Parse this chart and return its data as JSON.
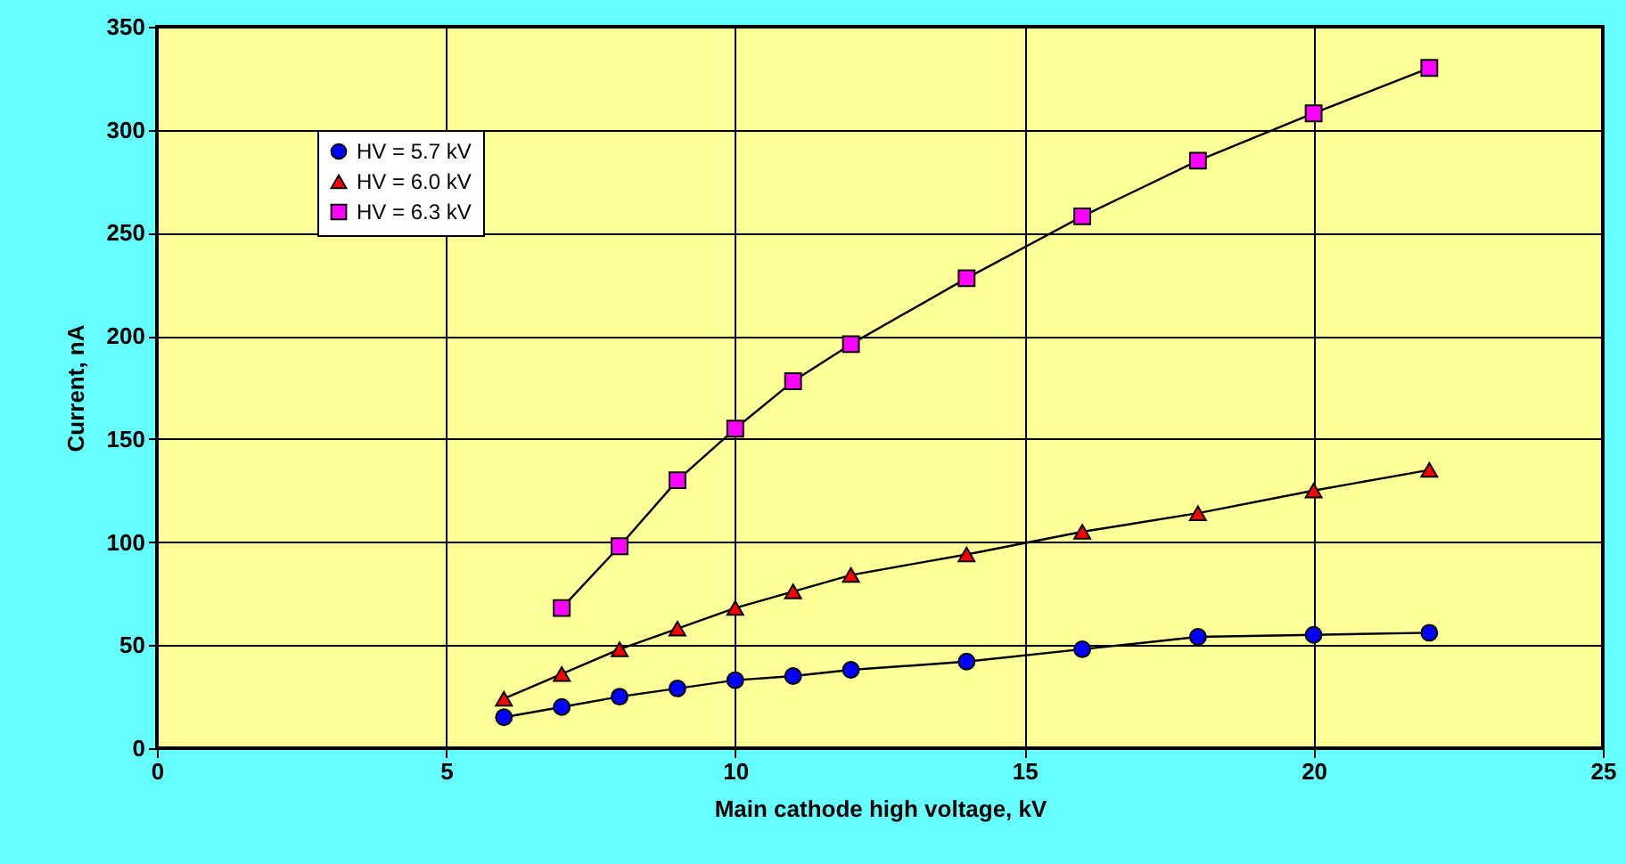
{
  "chart_data": {
    "type": "line",
    "xlabel": "Main cathode high voltage, kV",
    "ylabel": "Current, nA",
    "xlim": [
      0,
      25
    ],
    "xticks": [
      0,
      5,
      10,
      15,
      20,
      25
    ],
    "ylim": [
      0,
      350
    ],
    "yticks": [
      0,
      50,
      100,
      150,
      200,
      250,
      300,
      350
    ],
    "grid": true,
    "legend": "top left",
    "line_style": "solid",
    "series": [
      {
        "name": "HV = 5.7 kV",
        "color": "#0000ff",
        "marker": "circle",
        "x": [
          6,
          7,
          8,
          9,
          10,
          11,
          12,
          14,
          16,
          18,
          20,
          22
        ],
        "values": [
          15,
          20,
          25,
          29,
          33,
          35,
          38,
          42,
          48,
          54,
          55,
          56
        ]
      },
      {
        "name": "HV = 6.0 kV",
        "color": "#ff0000",
        "marker": "triangle",
        "x": [
          6,
          7,
          8,
          9,
          10,
          11,
          12,
          14,
          16,
          18,
          20,
          22
        ],
        "values": [
          24,
          36,
          48,
          58,
          68,
          76,
          84,
          94,
          105,
          114,
          125,
          135
        ]
      },
      {
        "name": "HV = 6.3 kV",
        "color": "#ff00ff",
        "marker": "square",
        "x": [
          7,
          8,
          9,
          10,
          11,
          12,
          14,
          16,
          18,
          20,
          22
        ],
        "values": [
          68,
          98,
          130,
          155,
          178,
          196,
          228,
          258,
          285,
          308,
          330
        ]
      }
    ]
  }
}
